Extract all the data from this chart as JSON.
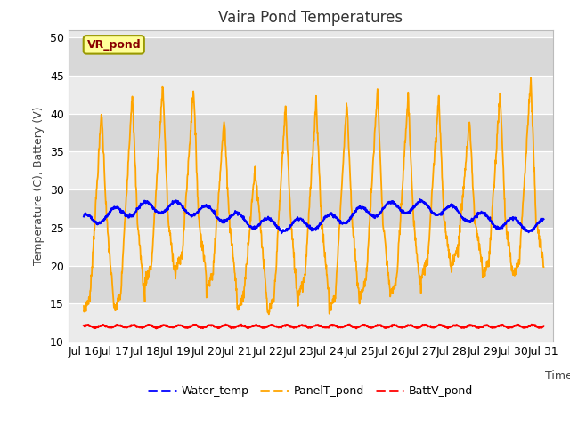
{
  "title": "Vaira Pond Temperatures",
  "xlabel": "Time",
  "ylabel": "Temperature (C), Battery (V)",
  "xlim_days": [
    15.5,
    31.3
  ],
  "ylim": [
    10,
    51
  ],
  "yticks": [
    10,
    15,
    20,
    25,
    30,
    35,
    40,
    45,
    50
  ],
  "xtick_days": [
    16,
    17,
    18,
    19,
    20,
    21,
    22,
    23,
    24,
    25,
    26,
    27,
    28,
    29,
    30,
    31
  ],
  "xtick_labels": [
    "Jul 16",
    "Jul 17",
    "Jul 18",
    "Jul 19",
    "Jul 20",
    "Jul 21",
    "Jul 22",
    "Jul 23",
    "Jul 24",
    "Jul 25",
    "Jul 26",
    "Jul 27",
    "Jul 28",
    "Jul 29",
    "Jul 30",
    "Jul 31"
  ],
  "water_color": "#0000ff",
  "panel_color": "#ffa500",
  "batt_color": "#ff0000",
  "fig_bg_color": "#ffffff",
  "plot_bg_color": "#e8e8e8",
  "band_light": "#ebebeb",
  "band_dark": "#d8d8d8",
  "grid_color": "#ffffff",
  "annotation_text": "VR_pond",
  "annotation_color": "#880000",
  "annotation_bg": "#ffff99",
  "annotation_border": "#999900",
  "legend_labels": [
    "Water_temp",
    "PanelT_pond",
    "BattV_pond"
  ]
}
